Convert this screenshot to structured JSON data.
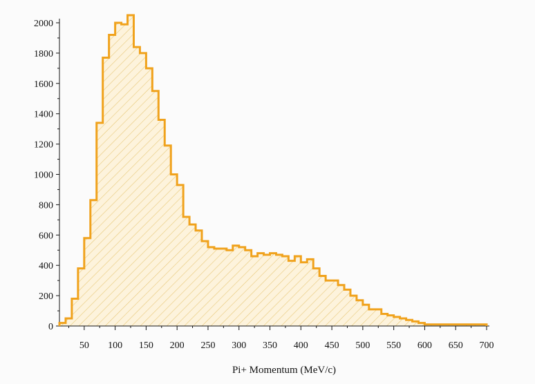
{
  "chart_data": {
    "type": "bar",
    "subtype": "histogram",
    "xlabel": "Pi+ Momentum (MeV/c)",
    "ylabel": "",
    "xlim": [
      10,
      700
    ],
    "ylim": [
      0,
      2000
    ],
    "xticks": [
      50,
      100,
      150,
      200,
      250,
      300,
      350,
      400,
      450,
      500,
      550,
      600,
      650,
      700
    ],
    "yticks": [
      0,
      200,
      400,
      600,
      800,
      1000,
      1200,
      1400,
      1600,
      1800,
      2000
    ],
    "bin_width": 10,
    "fill_pattern": "diagonal-hatch",
    "colors": {
      "line": "#f0a21c",
      "hatch": "#e8c878",
      "fill": "#fdf3dc"
    },
    "grid": false,
    "series": [
      {
        "bin_edges_start": [
          10,
          20,
          30,
          40,
          50,
          60,
          70,
          80,
          90,
          100,
          110,
          120,
          130,
          140,
          150,
          160,
          170,
          180,
          190,
          200,
          210,
          220,
          230,
          240,
          250,
          260,
          270,
          280,
          290,
          300,
          310,
          320,
          330,
          340,
          350,
          360,
          370,
          380,
          390,
          400,
          410,
          420,
          430,
          440,
          450,
          460,
          470,
          480,
          490,
          500,
          510,
          520,
          530,
          540,
          550,
          560,
          570,
          580,
          590,
          600,
          610,
          620,
          630,
          640,
          650,
          660,
          670,
          680,
          690
        ],
        "values": [
          20,
          50,
          180,
          380,
          580,
          830,
          1340,
          1770,
          1920,
          2000,
          1990,
          2050,
          1840,
          1800,
          1700,
          1550,
          1360,
          1190,
          1000,
          930,
          720,
          670,
          630,
          560,
          520,
          510,
          510,
          500,
          530,
          520,
          500,
          460,
          480,
          470,
          480,
          470,
          460,
          430,
          460,
          420,
          440,
          380,
          330,
          300,
          300,
          270,
          240,
          200,
          170,
          140,
          110,
          110,
          80,
          70,
          60,
          50,
          40,
          30,
          20,
          10,
          10,
          10,
          10,
          10,
          10,
          10,
          10,
          10,
          10
        ]
      }
    ]
  }
}
